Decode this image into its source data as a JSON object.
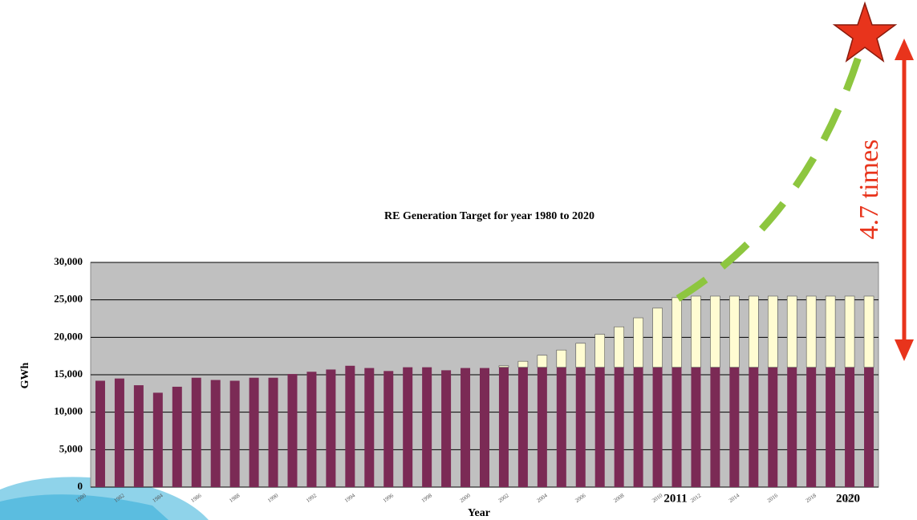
{
  "chart_data": {
    "type": "bar",
    "stacked": true,
    "title": "RE Generation Target for year 1980 to 2020",
    "x_label": "Year",
    "y_label": "GWh",
    "categories": [
      "1980",
      null,
      "1982",
      null,
      "1984",
      null,
      "1986",
      null,
      "1988",
      null,
      "1990",
      null,
      "1992",
      null,
      "1994",
      null,
      "1996",
      null,
      "1998",
      null,
      "2000",
      null,
      "2002",
      null,
      "2004",
      null,
      "2006",
      null,
      "2008",
      null,
      "2010",
      null,
      "2012",
      null,
      "2014",
      null,
      "2016",
      null,
      "2018",
      null,
      "2020"
    ],
    "series": [
      {
        "color": "#7b2a55",
        "values": [
          14200,
          14500,
          13600,
          12600,
          13400,
          14600,
          14300,
          14200,
          14600,
          14600,
          15100,
          15400,
          15700,
          16200,
          15900,
          15500,
          16000,
          16000,
          15600,
          15900,
          15900,
          16000,
          16000,
          16000,
          16000,
          16000,
          16000,
          16000,
          16000,
          16000,
          16000,
          16000,
          16000,
          16000,
          16000,
          16000,
          16000,
          16000,
          16000,
          16000,
          16000
        ]
      },
      {
        "color": "#fffcd2",
        "values": [
          0,
          0,
          0,
          0,
          0,
          0,
          0,
          0,
          0,
          0,
          0,
          0,
          0,
          0,
          0,
          0,
          0,
          0,
          0,
          0,
          0,
          200,
          800,
          1600,
          2300,
          3200,
          4400,
          5400,
          6600,
          7900,
          9300,
          9500,
          9500,
          9500,
          9500,
          9500,
          9500,
          9500,
          9500,
          9500,
          9500
        ]
      }
    ],
    "ylim": [
      0,
      30000
    ],
    "yticks": [
      0,
      {
        "value": 5000,
        "label": "5,000"
      },
      {
        "value": 10000,
        "label": "10,000"
      },
      {
        "value": 15000,
        "label": "15,000"
      },
      {
        "value": 20000,
        "label": "20,000"
      },
      {
        "value": 25000,
        "label": "25,000"
      },
      {
        "value": 30000,
        "label": "30,000"
      }
    ],
    "grid": true,
    "plot_background": "#c0c0c0",
    "annotations": [
      "4.7 times",
      "2011",
      "2020"
    ]
  }
}
